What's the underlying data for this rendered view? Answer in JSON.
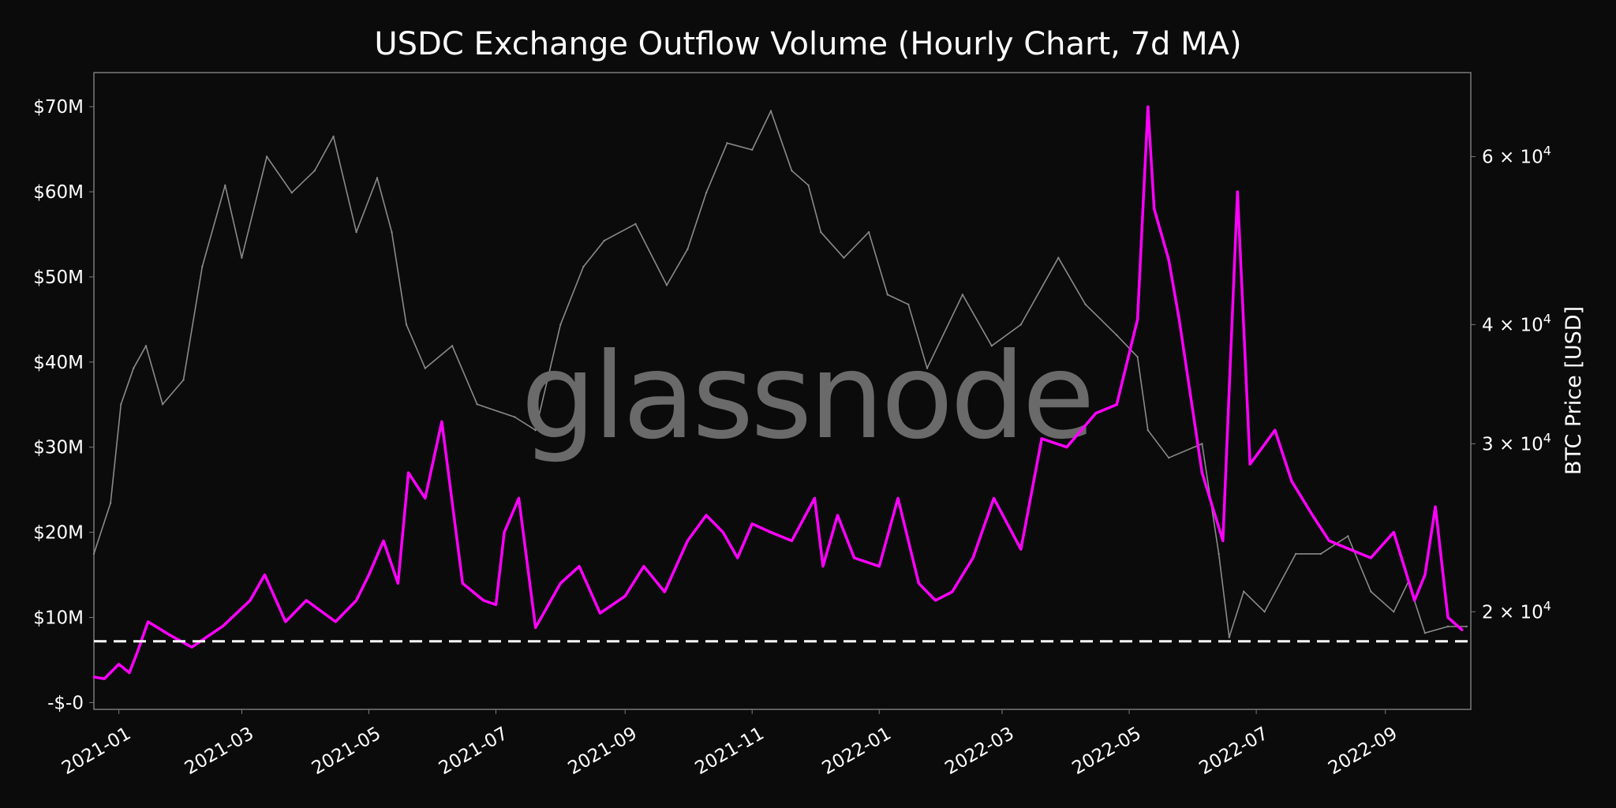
{
  "colors": {
    "background": "#0b0b0b",
    "plot_border": "#7a7a7a",
    "outflow_line": "#ff00ff",
    "btc_line": "#8a8a8a",
    "threshold_line": "#ffffff",
    "text": "#ffffff"
  },
  "watermark": "glassnode",
  "chart_data": {
    "type": "line",
    "title": "USDC Exchange Outflow Volume (Hourly Chart, 7d MA)",
    "xlabel": "",
    "ylabel": "",
    "y2label": "BTC Price [USD]",
    "x_tick_labels": [
      "2021-01",
      "2021-03",
      "2021-05",
      "2021-07",
      "2021-09",
      "2021-11",
      "2022-01",
      "2022-03",
      "2022-05",
      "2022-07",
      "2022-09"
    ],
    "x_tick_dates": [
      "2021-01-01",
      "2021-03-01",
      "2021-05-01",
      "2021-07-01",
      "2021-09-01",
      "2021-11-01",
      "2022-01-01",
      "2022-03-01",
      "2022-05-01",
      "2022-07-01",
      "2022-09-01"
    ],
    "x_range": [
      "2020-12-20",
      "2022-10-12"
    ],
    "y_tick_labels": [
      "-$-0",
      "$10M",
      "$20M",
      "$30M",
      "$40M",
      "$50M",
      "$60M",
      "$70M"
    ],
    "y_tick_values": [
      0,
      10000000,
      20000000,
      30000000,
      40000000,
      50000000,
      60000000,
      70000000
    ],
    "ylim": [
      -800000,
      74000000
    ],
    "y2_scale": "log",
    "y2_tick_labels": [
      {
        "mantissa": "2",
        "exp": "4",
        "value": 20000
      },
      {
        "mantissa": "3",
        "exp": "4",
        "value": 30000
      },
      {
        "mantissa": "4",
        "exp": "4",
        "value": 40000
      },
      {
        "mantissa": "6",
        "exp": "4",
        "value": 60000
      }
    ],
    "y2lim": [
      15800,
      73500
    ],
    "threshold": {
      "value": 7200000,
      "style": "dashed"
    },
    "series": [
      {
        "axis": "y1",
        "x": [
          "2020-12-20",
          "2020-12-25",
          "2021-01-01",
          "2021-01-06",
          "2021-01-10",
          "2021-01-15",
          "2021-01-25",
          "2021-02-05",
          "2021-02-20",
          "2021-03-05",
          "2021-03-12",
          "2021-03-22",
          "2021-04-01",
          "2021-04-15",
          "2021-04-25",
          "2021-05-01",
          "2021-05-08",
          "2021-05-15",
          "2021-05-20",
          "2021-05-28",
          "2021-06-05",
          "2021-06-15",
          "2021-06-25",
          "2021-07-01",
          "2021-07-05",
          "2021-07-12",
          "2021-07-20",
          "2021-08-01",
          "2021-08-10",
          "2021-08-20",
          "2021-09-01",
          "2021-09-10",
          "2021-09-20",
          "2021-10-01",
          "2021-10-10",
          "2021-10-18",
          "2021-10-25",
          "2021-11-01",
          "2021-11-10",
          "2021-11-20",
          "2021-12-01",
          "2021-12-05",
          "2021-12-12",
          "2021-12-20",
          "2022-01-01",
          "2022-01-10",
          "2022-01-20",
          "2022-01-28",
          "2022-02-05",
          "2022-02-15",
          "2022-02-25",
          "2022-03-10",
          "2022-03-20",
          "2022-04-01",
          "2022-04-15",
          "2022-04-25",
          "2022-05-05",
          "2022-05-10",
          "2022-05-13",
          "2022-05-20",
          "2022-05-25",
          "2022-06-05",
          "2022-06-15",
          "2022-06-22",
          "2022-06-28",
          "2022-07-10",
          "2022-07-18",
          "2022-07-28",
          "2022-08-05",
          "2022-08-15",
          "2022-08-25",
          "2022-09-05",
          "2022-09-15",
          "2022-09-20",
          "2022-09-25",
          "2022-10-01",
          "2022-10-08"
        ],
        "values": [
          3000000,
          2800000,
          4500000,
          3500000,
          6000000,
          9500000,
          8000000,
          6500000,
          9000000,
          12000000,
          15000000,
          9500000,
          12000000,
          9500000,
          12000000,
          15000000,
          19000000,
          14000000,
          27000000,
          24000000,
          33000000,
          14000000,
          12000000,
          11500000,
          20000000,
          24000000,
          8800000,
          14000000,
          16000000,
          10500000,
          12500000,
          16000000,
          13000000,
          19000000,
          22000000,
          20000000,
          17000000,
          21000000,
          20000000,
          19000000,
          24000000,
          16000000,
          22000000,
          17000000,
          16000000,
          24000000,
          14000000,
          12000000,
          13000000,
          17000000,
          24000000,
          18000000,
          31000000,
          30000000,
          34000000,
          35000000,
          45000000,
          70000000,
          58000000,
          52000000,
          45000000,
          27000000,
          19000000,
          60000000,
          28000000,
          32000000,
          26000000,
          22000000,
          19000000,
          18000000,
          17000000,
          20000000,
          12000000,
          15000000,
          23000000,
          10000000,
          8500000
        ]
      },
      {
        "axis": "y2",
        "x": [
          "2020-12-20",
          "2020-12-28",
          "2021-01-02",
          "2021-01-08",
          "2021-01-14",
          "2021-01-22",
          "2021-02-01",
          "2021-02-10",
          "2021-02-21",
          "2021-03-01",
          "2021-03-13",
          "2021-03-25",
          "2021-04-05",
          "2021-04-14",
          "2021-04-25",
          "2021-05-05",
          "2021-05-12",
          "2021-05-19",
          "2021-05-28",
          "2021-06-10",
          "2021-06-22",
          "2021-07-10",
          "2021-07-20",
          "2021-08-01",
          "2021-08-12",
          "2021-08-22",
          "2021-09-06",
          "2021-09-21",
          "2021-10-01",
          "2021-10-10",
          "2021-10-20",
          "2021-11-01",
          "2021-11-10",
          "2021-11-20",
          "2021-11-28",
          "2021-12-04",
          "2021-12-15",
          "2021-12-27",
          "2022-01-05",
          "2022-01-15",
          "2022-01-24",
          "2022-02-10",
          "2022-02-24",
          "2022-03-10",
          "2022-03-28",
          "2022-04-10",
          "2022-04-25",
          "2022-05-05",
          "2022-05-10",
          "2022-05-20",
          "2022-06-05",
          "2022-06-13",
          "2022-06-18",
          "2022-06-25",
          "2022-07-05",
          "2022-07-20",
          "2022-08-01",
          "2022-08-14",
          "2022-08-25",
          "2022-09-05",
          "2022-09-12",
          "2022-09-20",
          "2022-10-01",
          "2022-10-10"
        ],
        "values": [
          23000,
          26000,
          33000,
          36000,
          38000,
          33000,
          35000,
          46000,
          56000,
          47000,
          60000,
          55000,
          58000,
          63000,
          50000,
          57000,
          50000,
          40000,
          36000,
          38000,
          33000,
          32000,
          31000,
          40000,
          46000,
          49000,
          51000,
          44000,
          48000,
          55000,
          62000,
          61000,
          67000,
          58000,
          56000,
          50000,
          47000,
          50000,
          43000,
          42000,
          36000,
          43000,
          38000,
          40000,
          47000,
          42000,
          39000,
          37000,
          31000,
          29000,
          30000,
          23000,
          18800,
          21000,
          20000,
          23000,
          23000,
          24000,
          21000,
          20000,
          21500,
          19000,
          19300,
          19300
        ]
      }
    ]
  }
}
